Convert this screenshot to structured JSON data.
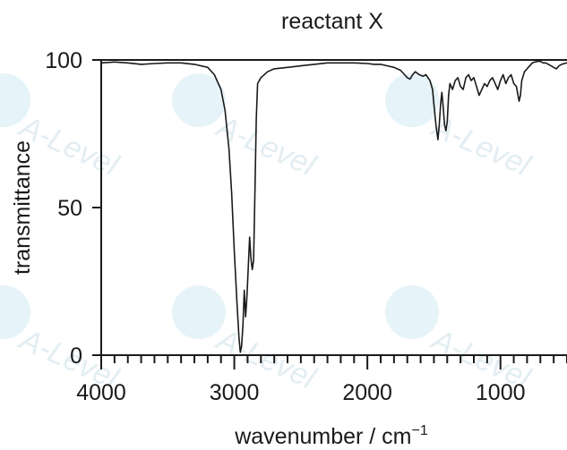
{
  "chart_data": {
    "type": "line",
    "title": "reactant X",
    "xlabel": "wavenumber / cm",
    "xlabel_superscript": "−1",
    "ylabel": "transmittance",
    "xlim": [
      4000,
      500
    ],
    "ylim": [
      0,
      100
    ],
    "x_reversed": true,
    "x_major_ticks": [
      4000,
      3000,
      2000,
      1000
    ],
    "x_tick_labels": [
      "4000",
      "3000",
      "2000",
      "1000"
    ],
    "x_minor_step": 100,
    "y_ticks": [
      0,
      50,
      100
    ],
    "y_tick_labels": [
      "0",
      "50",
      "100"
    ],
    "grid": false,
    "series": [
      {
        "color": "#1a1a1a",
        "points": [
          [
            4000,
            99
          ],
          [
            3900,
            99.3
          ],
          [
            3800,
            99
          ],
          [
            3700,
            98.5
          ],
          [
            3600,
            98.8
          ],
          [
            3500,
            99
          ],
          [
            3400,
            99
          ],
          [
            3300,
            98.5
          ],
          [
            3200,
            97.5
          ],
          [
            3150,
            95
          ],
          [
            3100,
            90
          ],
          [
            3070,
            83
          ],
          [
            3040,
            70
          ],
          [
            3020,
            55
          ],
          [
            3000,
            35
          ],
          [
            2980,
            18
          ],
          [
            2965,
            6
          ],
          [
            2955,
            1
          ],
          [
            2945,
            3
          ],
          [
            2935,
            10
          ],
          [
            2925,
            22
          ],
          [
            2915,
            13
          ],
          [
            2905,
            20
          ],
          [
            2895,
            30
          ],
          [
            2885,
            40
          ],
          [
            2875,
            33
          ],
          [
            2865,
            29
          ],
          [
            2855,
            32
          ],
          [
            2845,
            55
          ],
          [
            2835,
            80
          ],
          [
            2825,
            92
          ],
          [
            2800,
            94
          ],
          [
            2750,
            96
          ],
          [
            2700,
            97
          ],
          [
            2600,
            97.5
          ],
          [
            2500,
            98
          ],
          [
            2400,
            98.5
          ],
          [
            2300,
            99
          ],
          [
            2200,
            99
          ],
          [
            2100,
            99
          ],
          [
            2000,
            98.8
          ],
          [
            1950,
            98.5
          ],
          [
            1900,
            98.5
          ],
          [
            1850,
            98
          ],
          [
            1800,
            97.5
          ],
          [
            1750,
            96.5
          ],
          [
            1720,
            95
          ],
          [
            1700,
            94
          ],
          [
            1680,
            93.5
          ],
          [
            1660,
            95
          ],
          [
            1640,
            96
          ],
          [
            1610,
            95
          ],
          [
            1580,
            94.5
          ],
          [
            1560,
            95
          ],
          [
            1530,
            93
          ],
          [
            1510,
            90
          ],
          [
            1500,
            85
          ],
          [
            1485,
            78
          ],
          [
            1470,
            73
          ],
          [
            1460,
            78
          ],
          [
            1450,
            85
          ],
          [
            1440,
            89
          ],
          [
            1430,
            84
          ],
          [
            1420,
            78
          ],
          [
            1410,
            76
          ],
          [
            1400,
            79
          ],
          [
            1390,
            88
          ],
          [
            1380,
            92
          ],
          [
            1360,
            90
          ],
          [
            1340,
            93
          ],
          [
            1320,
            94
          ],
          [
            1300,
            91
          ],
          [
            1280,
            90
          ],
          [
            1260,
            94
          ],
          [
            1240,
            95
          ],
          [
            1220,
            93
          ],
          [
            1200,
            94
          ],
          [
            1180,
            91
          ],
          [
            1160,
            88
          ],
          [
            1140,
            90
          ],
          [
            1120,
            92
          ],
          [
            1100,
            91
          ],
          [
            1080,
            93
          ],
          [
            1060,
            94
          ],
          [
            1040,
            92
          ],
          [
            1020,
            90
          ],
          [
            1000,
            93
          ],
          [
            980,
            95
          ],
          [
            960,
            92
          ],
          [
            940,
            94
          ],
          [
            920,
            95
          ],
          [
            900,
            92
          ],
          [
            880,
            91
          ],
          [
            860,
            86
          ],
          [
            850,
            88
          ],
          [
            840,
            93
          ],
          [
            820,
            96
          ],
          [
            800,
            97
          ],
          [
            780,
            98
          ],
          [
            760,
            99
          ],
          [
            740,
            99.3
          ],
          [
            720,
            99.5
          ],
          [
            700,
            99.5
          ],
          [
            680,
            99
          ],
          [
            660,
            99
          ],
          [
            640,
            98.5
          ],
          [
            620,
            98
          ],
          [
            600,
            97.5
          ],
          [
            580,
            97
          ],
          [
            560,
            98
          ],
          [
            540,
            98.5
          ],
          [
            520,
            98.8
          ],
          [
            500,
            99
          ]
        ]
      }
    ]
  }
}
